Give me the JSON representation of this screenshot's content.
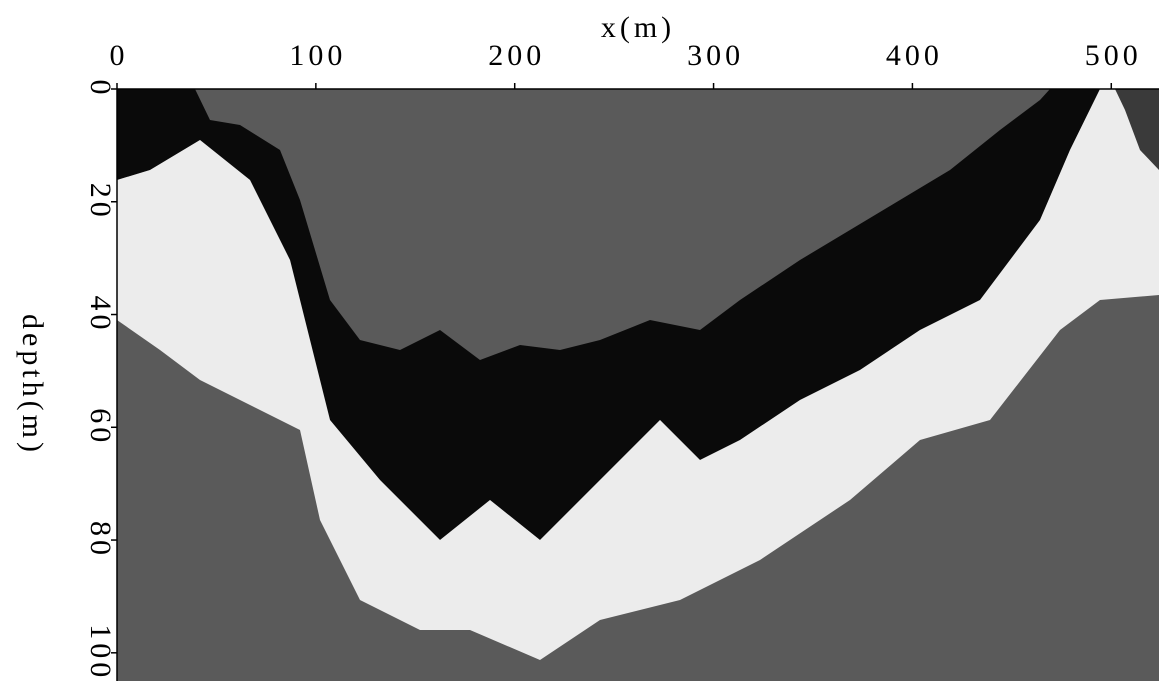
{
  "chart_data": {
    "type": "image",
    "xlabel": "x(m)",
    "ylabel": "depth(m)",
    "xlim": [
      0,
      524
    ],
    "ylim": [
      0,
      105
    ],
    "xticks": [
      0,
      100,
      200,
      300,
      400,
      500
    ],
    "yticks": [
      0,
      20,
      40,
      60,
      80,
      100
    ],
    "background": "#5a5a5a"
  }
}
